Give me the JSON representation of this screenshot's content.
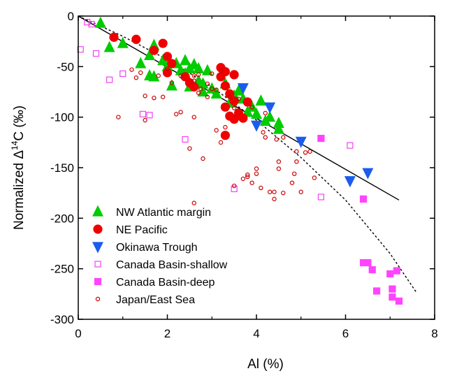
{
  "chart_data": {
    "type": "scatter",
    "xlabel": "Al (%)",
    "ylabel_parts": {
      "pre": "Normalized Δ",
      "sup": "14",
      "post": "C (‰)"
    },
    "xlim": [
      0,
      8
    ],
    "ylim": [
      -300,
      0
    ],
    "xticks": [
      0,
      2,
      4,
      6,
      8
    ],
    "yticks": [
      0,
      -50,
      -100,
      -150,
      -200,
      -250,
      -300
    ],
    "legend_position": "bottom-left",
    "series": [
      {
        "name": "NW Atlantic margin",
        "marker": "triangle-up",
        "fill": "#00cc00",
        "stroke": "#00cc00",
        "hollow": false,
        "size": 7,
        "points": [
          [
            0.5,
            -7
          ],
          [
            0.7,
            -31
          ],
          [
            1.0,
            -27
          ],
          [
            1.4,
            -47
          ],
          [
            1.6,
            -59
          ],
          [
            1.6,
            -39
          ],
          [
            1.7,
            -29
          ],
          [
            1.7,
            -60
          ],
          [
            1.9,
            -44
          ],
          [
            2.0,
            -50
          ],
          [
            2.1,
            -69
          ],
          [
            2.2,
            -47
          ],
          [
            2.3,
            -54
          ],
          [
            2.4,
            -44
          ],
          [
            2.4,
            -57
          ],
          [
            2.5,
            -52
          ],
          [
            2.5,
            -70
          ],
          [
            2.6,
            -48
          ],
          [
            2.7,
            -52
          ],
          [
            2.7,
            -64
          ],
          [
            2.8,
            -67
          ],
          [
            2.8,
            -75
          ],
          [
            2.9,
            -54
          ],
          [
            3.0,
            -72
          ],
          [
            3.1,
            -77
          ],
          [
            3.5,
            -79
          ],
          [
            3.6,
            -74
          ],
          [
            3.7,
            -82
          ],
          [
            3.8,
            -95
          ],
          [
            3.9,
            -90
          ],
          [
            4.0,
            -97
          ],
          [
            4.1,
            -84
          ],
          [
            4.2,
            -104
          ],
          [
            4.3,
            -100
          ],
          [
            4.5,
            -106
          ],
          [
            4.5,
            -112
          ],
          [
            3.3,
            -67
          ],
          [
            3.4,
            -86
          ]
        ]
      },
      {
        "name": "NE Pacific",
        "marker": "circle",
        "fill": "#ee0000",
        "stroke": "#ee0000",
        "hollow": false,
        "size": 6,
        "points": [
          [
            0.8,
            -21
          ],
          [
            1.3,
            -23
          ],
          [
            1.7,
            -34
          ],
          [
            1.9,
            -27
          ],
          [
            2.0,
            -40
          ],
          [
            2.0,
            -56
          ],
          [
            2.1,
            -47
          ],
          [
            2.4,
            -60
          ],
          [
            2.5,
            -66
          ],
          [
            2.6,
            -70
          ],
          [
            3.2,
            -51
          ],
          [
            3.2,
            -60
          ],
          [
            3.3,
            -55
          ],
          [
            3.3,
            -69
          ],
          [
            3.3,
            -90
          ],
          [
            3.3,
            -118
          ],
          [
            3.4,
            -77
          ],
          [
            3.4,
            -99
          ],
          [
            3.5,
            -58
          ],
          [
            3.5,
            -84
          ],
          [
            3.5,
            -102
          ],
          [
            3.6,
            -96
          ],
          [
            3.7,
            -101
          ],
          [
            3.8,
            -85
          ]
        ]
      },
      {
        "name": "Okinawa Trough",
        "marker": "triangle-down",
        "fill": "#1a5cee",
        "stroke": "#1a5cee",
        "hollow": false,
        "size": 7,
        "points": [
          [
            3.7,
            -71
          ],
          [
            4.0,
            -108
          ],
          [
            4.3,
            -90
          ],
          [
            5.0,
            -124
          ],
          [
            6.1,
            -163
          ],
          [
            6.5,
            -155
          ]
        ]
      },
      {
        "name": "Canada Basin-shallow",
        "marker": "square",
        "fill": "none",
        "stroke": "#f044f0",
        "hollow": true,
        "size": 4,
        "points": [
          [
            0.05,
            -33
          ],
          [
            0.2,
            -6
          ],
          [
            0.3,
            -8
          ],
          [
            0.4,
            -37
          ],
          [
            0.7,
            -63
          ],
          [
            1.0,
            -57
          ],
          [
            1.45,
            -97
          ],
          [
            1.6,
            -98
          ],
          [
            2.4,
            -122
          ],
          [
            3.5,
            -171
          ],
          [
            5.45,
            -179
          ],
          [
            6.1,
            -128
          ]
        ]
      },
      {
        "name": "Canada Basin-deep",
        "marker": "square",
        "fill": "#ff44ff",
        "stroke": "#ff44ff",
        "hollow": false,
        "size": 4.5,
        "points": [
          [
            5.45,
            -121
          ],
          [
            6.4,
            -181
          ],
          [
            6.4,
            -244
          ],
          [
            6.5,
            -244
          ],
          [
            6.6,
            -251
          ],
          [
            6.7,
            -272
          ],
          [
            7.0,
            -255
          ],
          [
            7.05,
            -270
          ],
          [
            7.05,
            -278
          ],
          [
            7.15,
            -252
          ],
          [
            7.2,
            -282
          ]
        ]
      },
      {
        "name": "Japan/East Sea",
        "marker": "circle",
        "fill": "none",
        "stroke": "#cc0000",
        "hollow": true,
        "size": 2.6,
        "points": [
          [
            0.9,
            -100
          ],
          [
            1.2,
            -53
          ],
          [
            1.3,
            -61
          ],
          [
            1.4,
            -56
          ],
          [
            1.5,
            -79
          ],
          [
            1.5,
            -103
          ],
          [
            1.7,
            -81
          ],
          [
            1.8,
            -59
          ],
          [
            1.9,
            -80
          ],
          [
            2.0,
            -52
          ],
          [
            2.1,
            -66
          ],
          [
            2.2,
            -97
          ],
          [
            2.3,
            -59
          ],
          [
            2.3,
            -95
          ],
          [
            2.5,
            -131
          ],
          [
            2.6,
            -185
          ],
          [
            2.6,
            -59
          ],
          [
            2.7,
            -76
          ],
          [
            2.8,
            -141
          ],
          [
            2.9,
            -80
          ],
          [
            2.9,
            -67
          ],
          [
            3.0,
            -57
          ],
          [
            3.1,
            -73
          ],
          [
            3.2,
            -125
          ],
          [
            3.3,
            -110
          ],
          [
            3.4,
            -80
          ],
          [
            3.5,
            -168
          ],
          [
            3.5,
            -91
          ],
          [
            3.6,
            -82
          ],
          [
            3.7,
            -161
          ],
          [
            3.8,
            -157
          ],
          [
            3.8,
            -159
          ],
          [
            3.9,
            -165
          ],
          [
            3.9,
            -90
          ],
          [
            4.0,
            -156
          ],
          [
            4.0,
            -151
          ],
          [
            4.1,
            -170
          ],
          [
            4.15,
            -115
          ],
          [
            4.2,
            -120
          ],
          [
            4.2,
            -96
          ],
          [
            4.3,
            -174
          ],
          [
            4.4,
            -181
          ],
          [
            4.4,
            -174
          ],
          [
            4.45,
            -122
          ],
          [
            4.5,
            -144
          ],
          [
            4.5,
            -151
          ],
          [
            4.6,
            -175
          ],
          [
            4.6,
            -120
          ],
          [
            4.8,
            -165
          ],
          [
            4.85,
            -156
          ],
          [
            4.9,
            -144
          ],
          [
            5.0,
            -174
          ],
          [
            5.1,
            -135
          ],
          [
            5.2,
            -134
          ],
          [
            5.3,
            -160
          ],
          [
            2.6,
            -64
          ],
          [
            2.7,
            -58
          ],
          [
            3.2,
            -54
          ],
          [
            3.0,
            -72
          ],
          [
            3.1,
            -113
          ],
          [
            2.6,
            -100
          ],
          [
            2.75,
            -72
          ],
          [
            4.9,
            -134
          ]
        ]
      }
    ],
    "fit_lines": [
      {
        "style": "solid",
        "color": "#000000",
        "points": [
          [
            0,
            0
          ],
          [
            7.2,
            -182
          ]
        ]
      },
      {
        "style": "dotted",
        "color": "#000000",
        "points": [
          [
            0,
            0
          ],
          [
            1,
            -20
          ],
          [
            2,
            -43
          ],
          [
            3,
            -70
          ],
          [
            4,
            -103
          ],
          [
            5,
            -140
          ],
          [
            6,
            -182
          ],
          [
            7,
            -235
          ],
          [
            7.6,
            -274
          ]
        ]
      }
    ]
  }
}
